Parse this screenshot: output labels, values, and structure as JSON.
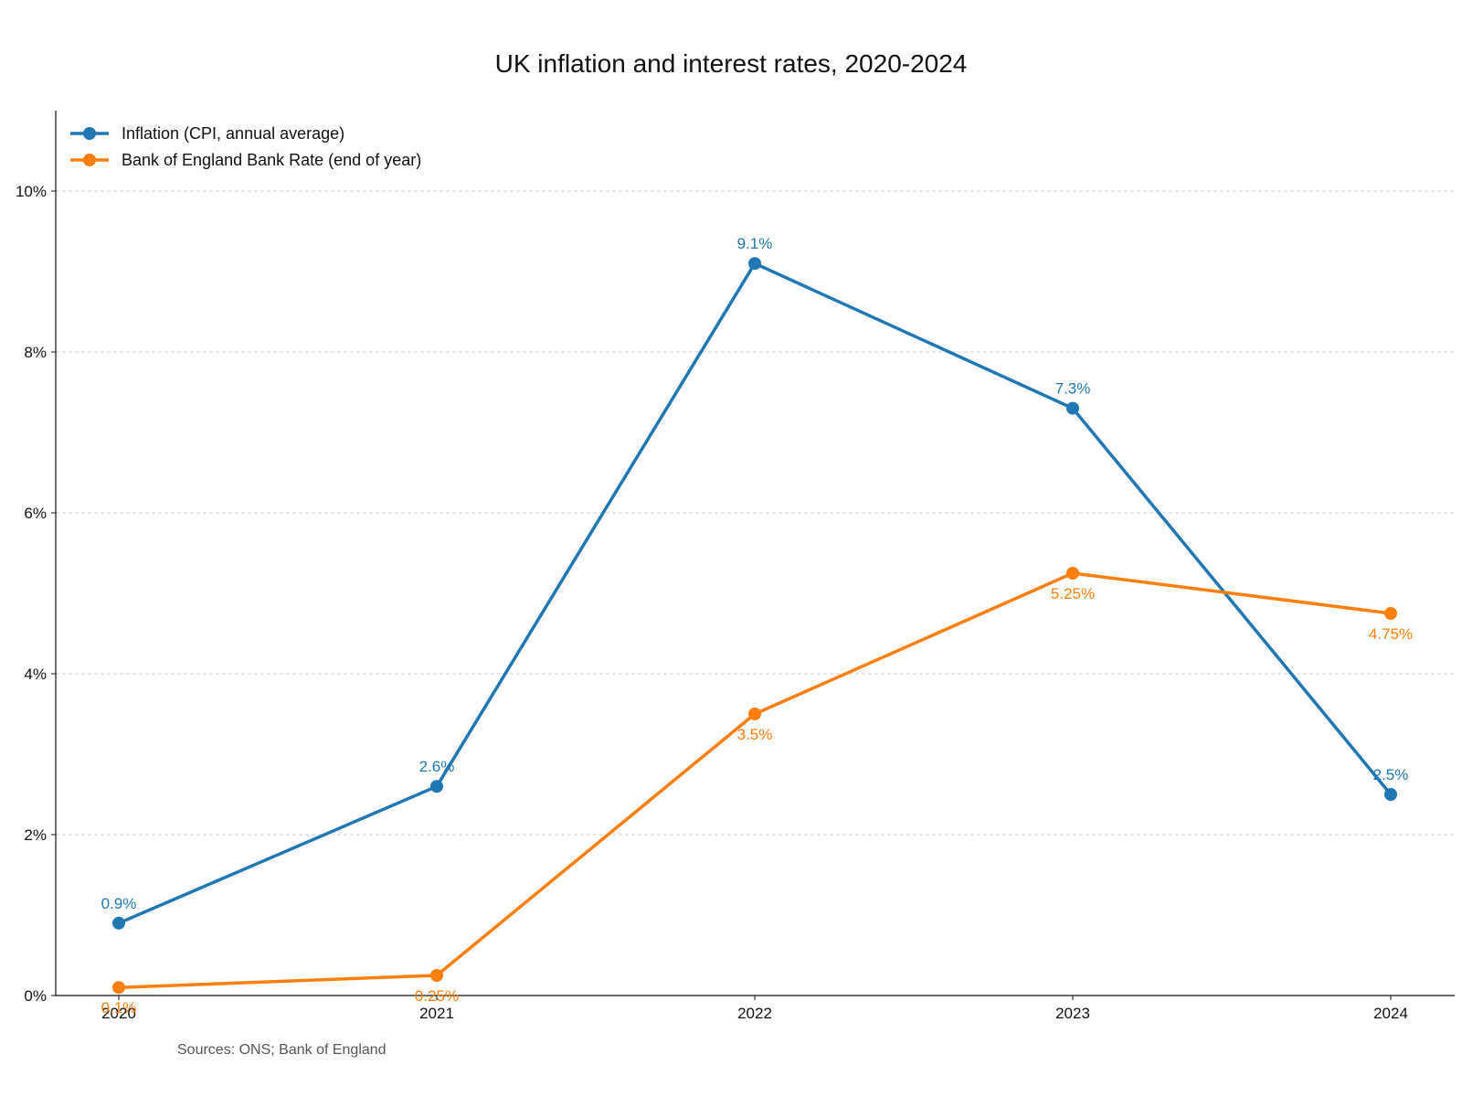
{
  "chart_data": {
    "type": "line",
    "title": "UK inflation and interest rates, 2020-2024",
    "xlabel": "",
    "ylabel": "",
    "categories": [
      "2020",
      "2021",
      "2022",
      "2023",
      "2024"
    ],
    "ylim": [
      0,
      11
    ],
    "yticks": [
      0,
      2,
      4,
      6,
      8,
      10
    ],
    "ytick_labels": [
      "0%",
      "2%",
      "4%",
      "6%",
      "8%",
      "10%"
    ],
    "grid": "horizontal dashed",
    "legend_position": "top-left",
    "series": [
      {
        "name": "Inflation (CPI, annual average)",
        "color": "#1f77b4",
        "values": [
          0.9,
          2.6,
          9.1,
          7.3,
          2.5
        ],
        "labels": [
          "0.9%",
          "2.6%",
          "9.1%",
          "7.3%",
          "2.5%"
        ],
        "label_position": "above"
      },
      {
        "name": "Bank of England Bank Rate (end of year)",
        "color": "#ff7f0e",
        "values": [
          0.1,
          0.25,
          3.5,
          5.25,
          4.75
        ],
        "labels": [
          "0.1%",
          "0.25%",
          "3.5%",
          "5.25%",
          "4.75%"
        ],
        "label_position": "below"
      }
    ],
    "source": "Sources: ONS; Bank of England"
  }
}
